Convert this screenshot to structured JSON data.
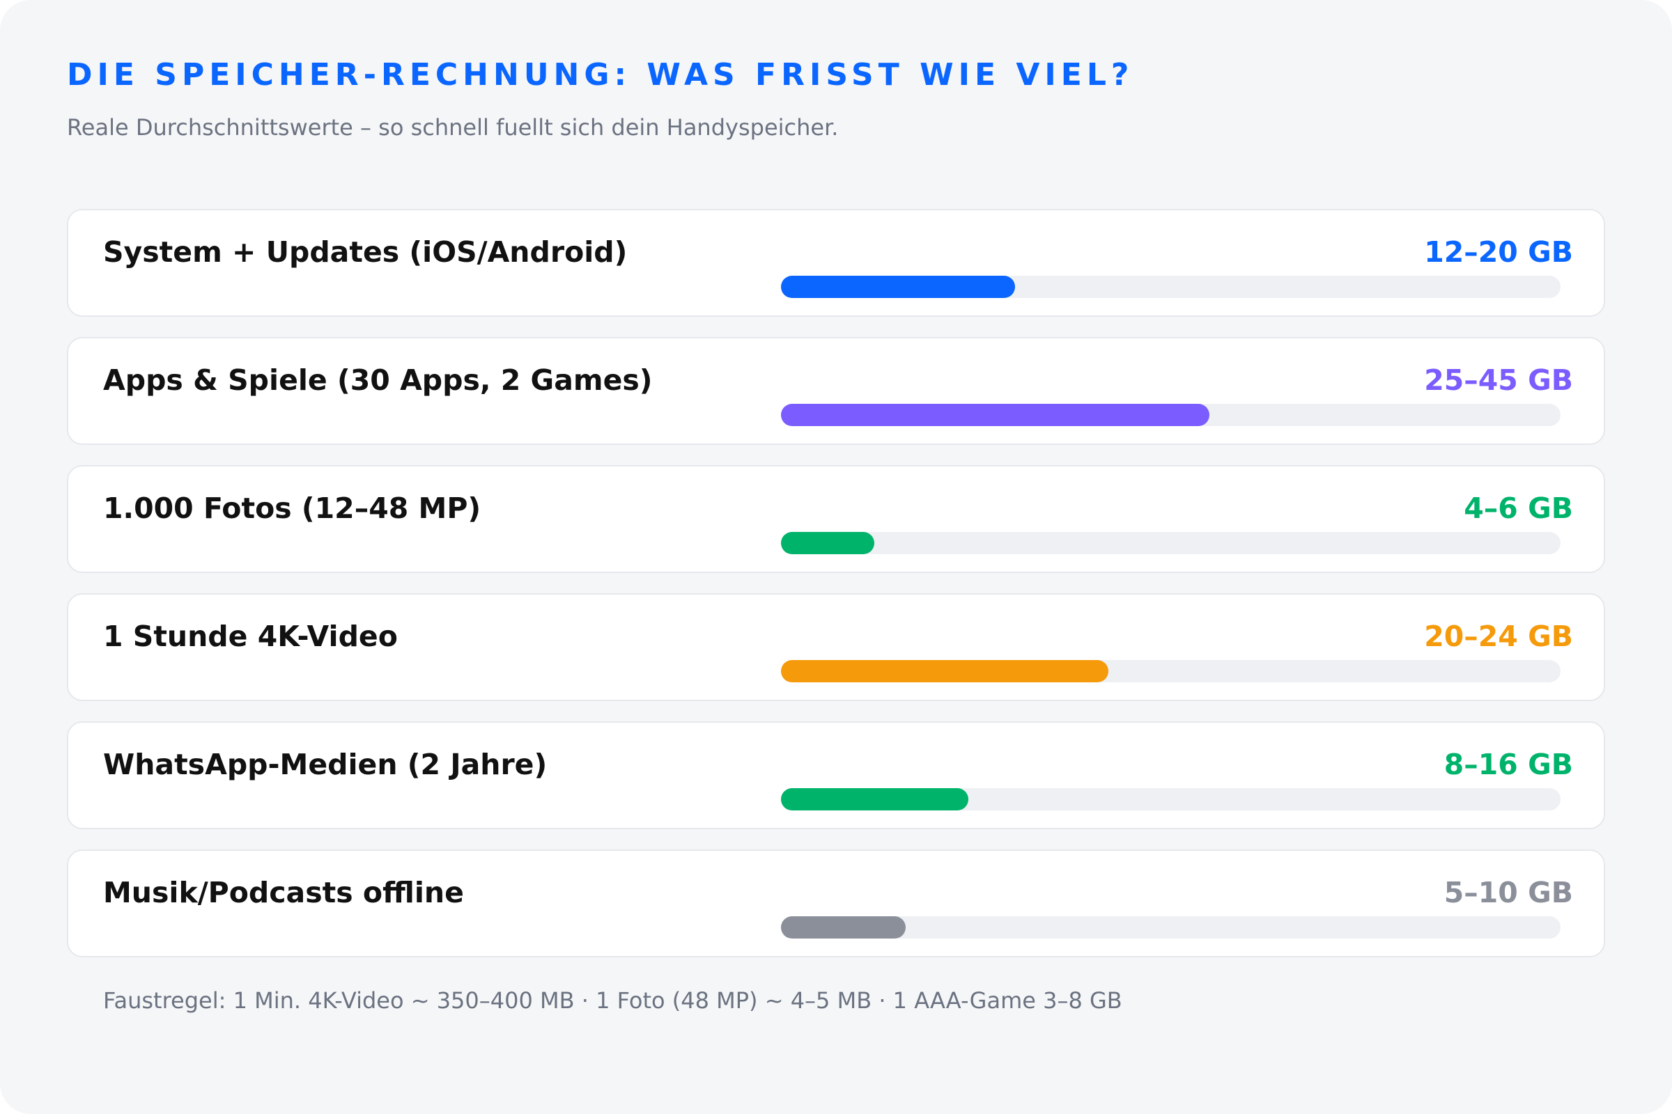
{
  "header": {
    "title": "DIE SPEICHER-RECHNUNG: WAS FRISST WIE VIEL?",
    "subtitle": "Reale Durchschnittswerte – so schnell fuellt sich dein Handyspeicher."
  },
  "chart_data": {
    "type": "bar",
    "orientation": "horizontal",
    "categories": [
      "System + Updates (iOS/Android)",
      "Apps & Spiele (30 Apps, 2 Games)",
      "1.000 Fotos (12–48 MP)",
      "1 Stunde 4K-Video",
      "WhatsApp-Medien (2 Jahre)",
      "Musik/Podcasts offline"
    ],
    "value_labels": [
      "12–20 GB",
      "25–45 GB",
      "4–6 GB",
      "20–24 GB",
      "8–16 GB",
      "5–10 GB"
    ],
    "values": [
      15,
      27.5,
      6,
      21,
      12,
      8
    ],
    "colors": [
      "#0a66ff",
      "#7b5cff",
      "#00b36b",
      "#f59a0a",
      "#00b36b",
      "#8b8f9a"
    ],
    "xlim": [
      0,
      50
    ],
    "grid": false,
    "legend": false
  },
  "footnote": "Faustregel: 1 Min. 4K-Video ~ 350–400 MB · 1 Foto (48 MP) ~ 4–5 MB · 1 AAA-Game 3–8 GB",
  "colors": {
    "accent": "#0a66ff",
    "track": "#eef0f3",
    "background": "#f5f6f8"
  }
}
